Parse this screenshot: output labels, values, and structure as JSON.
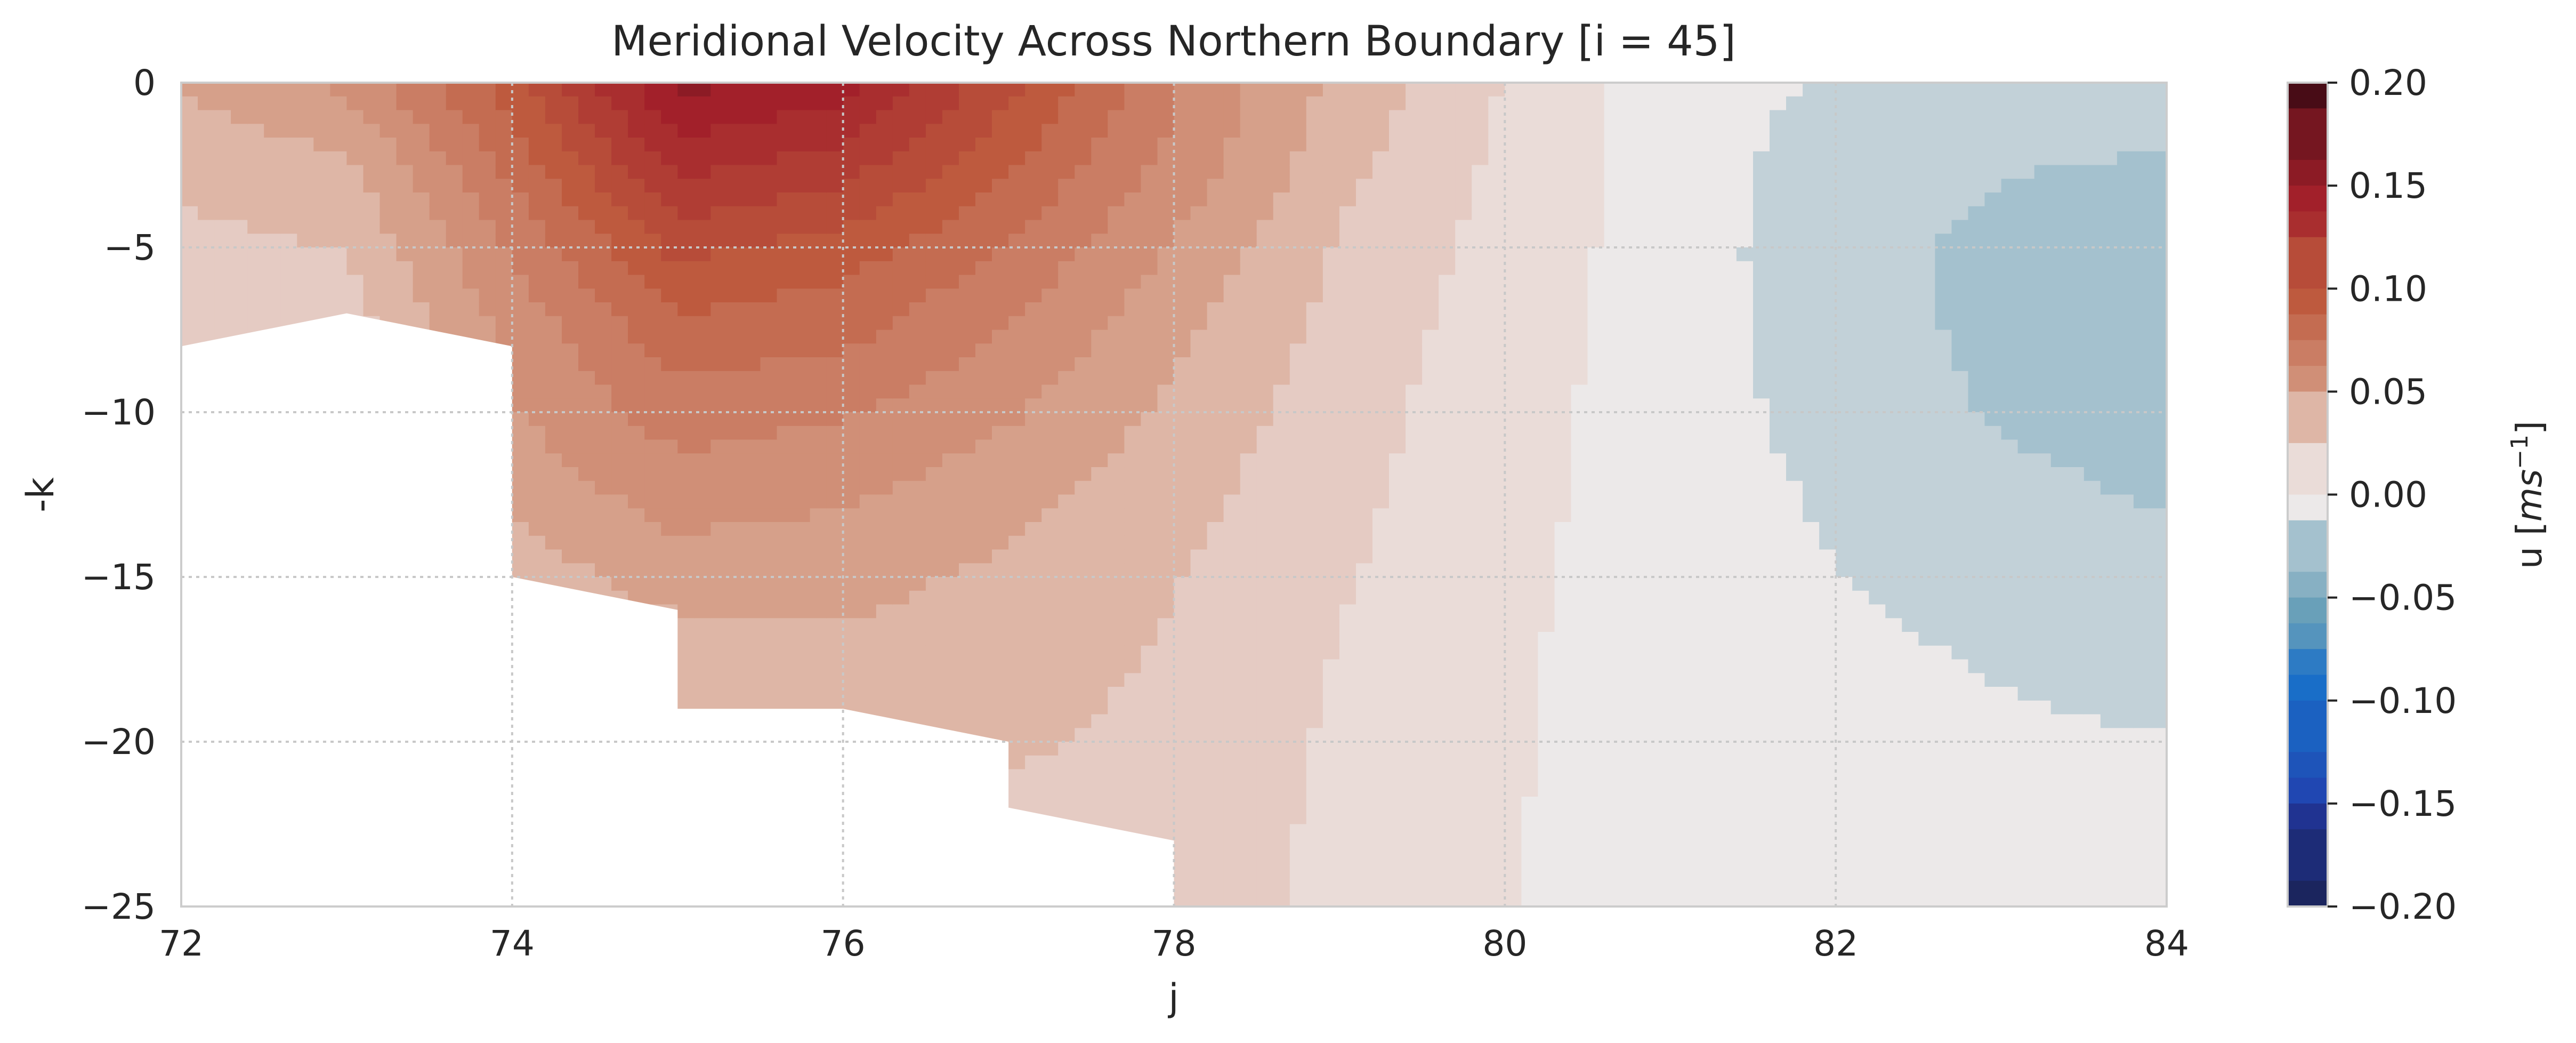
{
  "chart_data": {
    "type": "heatmap",
    "subtype": "filled-contour",
    "title": "Meridional Velocity Across Northern Boundary [i = 45]",
    "xlabel": "j",
    "ylabel": "-k",
    "xlim": [
      72,
      84
    ],
    "ylim": [
      -25,
      0
    ],
    "xticks": [
      "72",
      "74",
      "76",
      "78",
      "80",
      "82",
      "84"
    ],
    "yticks": [
      "0",
      "−5",
      "−10",
      "−15",
      "−20",
      "−25"
    ],
    "grid": true,
    "colorbar": {
      "label": "u [ms⁻¹]",
      "label_main": "u [",
      "label_unit": "ms",
      "label_exp": "−1",
      "label_end": "]",
      "vmin": -0.2,
      "vmax": 0.2,
      "levels": 33,
      "ticks": [
        "0.20",
        "0.15",
        "0.10",
        "0.05",
        "0.00",
        "−0.05",
        "−0.10",
        "−0.15",
        "−0.20"
      ],
      "colormap": "balance (diverging: navy → blue → white → red → dark red)"
    },
    "fields_description": "Positive (northward) velocities peak near j=75–76 at the surface (~0.16 m/s) and decrease eastward to ~0 near j=81; weak negative values (~-0.02 m/s) appear for j>82 at depths -5 to -13. White region at lower left is masked (bottom topography).",
    "land_mask_boundary": [
      [
        72,
        -8
      ],
      [
        73,
        -7
      ],
      [
        74,
        -8
      ],
      [
        74,
        -15
      ],
      [
        75,
        -16
      ],
      [
        75,
        -19
      ],
      [
        76,
        -19
      ],
      [
        77,
        -20
      ],
      [
        77,
        -22
      ],
      [
        78,
        -23
      ],
      [
        78,
        -25
      ]
    ],
    "grid_values": {
      "j": [
        72,
        73,
        74,
        75,
        76,
        77,
        78,
        79,
        80,
        81,
        82,
        83,
        84
      ],
      "k": [
        0,
        -2.5,
        -5,
        -7.5,
        -10,
        -12.5,
        -15,
        -17.5,
        -20,
        -22.5,
        -25
      ],
      "u": [
        [
          0.045,
          0.06,
          0.1,
          0.16,
          0.15,
          0.11,
          0.07,
          0.04,
          0.018,
          0.0,
          -0.008,
          -0.012,
          -0.013
        ],
        [
          0.035,
          0.04,
          0.085,
          0.135,
          0.125,
          0.095,
          0.065,
          0.035,
          0.016,
          0.0,
          -0.012,
          -0.018,
          -0.02
        ],
        [
          0.028,
          0.032,
          0.07,
          0.11,
          0.1,
          0.08,
          0.055,
          0.03,
          0.014,
          0.0,
          -0.014,
          -0.022,
          -0.024
        ],
        [
          0.02,
          0.025,
          0.06,
          0.09,
          0.085,
          0.068,
          0.047,
          0.027,
          0.012,
          0.0,
          -0.013,
          -0.022,
          -0.024
        ],
        [
          null,
          null,
          0.055,
          0.075,
          0.07,
          0.058,
          0.041,
          0.024,
          0.011,
          0.0,
          -0.011,
          -0.02,
          -0.023
        ],
        [
          null,
          null,
          0.048,
          0.062,
          0.058,
          0.048,
          0.036,
          0.022,
          0.01,
          0.0,
          -0.008,
          -0.016,
          -0.02
        ],
        [
          null,
          null,
          0.036,
          0.05,
          0.048,
          0.041,
          0.032,
          0.02,
          0.009,
          0.0,
          -0.006,
          -0.01,
          -0.015
        ],
        [
          null,
          null,
          null,
          0.035,
          0.04,
          0.036,
          0.03,
          0.018,
          0.008,
          0.0,
          -0.004,
          -0.007,
          -0.009
        ],
        [
          null,
          null,
          null,
          0.03,
          0.035,
          0.033,
          0.028,
          0.017,
          0.008,
          0.0,
          -0.003,
          -0.005,
          -0.006
        ],
        [
          null,
          null,
          null,
          null,
          null,
          0.028,
          0.027,
          0.016,
          0.007,
          0.0,
          -0.002,
          -0.003,
          -0.004
        ],
        [
          null,
          null,
          null,
          null,
          null,
          null,
          0.026,
          0.015,
          0.007,
          0.0,
          -0.002,
          -0.003,
          -0.003
        ]
      ]
    }
  }
}
